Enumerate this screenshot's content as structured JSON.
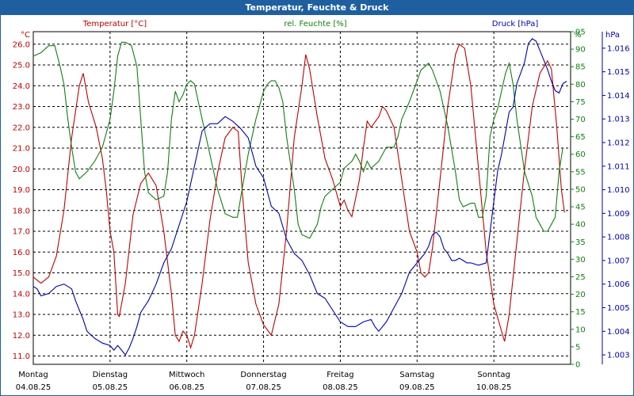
{
  "window": {
    "title": "Temperatur, Feuchte & Druck"
  },
  "colors": {
    "title_bar": "#1f5fa0",
    "temperature": "#c00000",
    "humidity": "#108010",
    "pressure": "#0000b0",
    "grid": "#000000"
  },
  "chart_data": {
    "type": "line",
    "axes": {
      "temperature": {
        "unit_label": "°C",
        "header": "Temperatur [°C]",
        "range": [
          10.6,
          26.6
        ],
        "ticks": [
          "26.0",
          "25.0",
          "24.0",
          "23.0",
          "22.0",
          "21.0",
          "20.0",
          "19.0",
          "18.0",
          "17.0",
          "16.0",
          "15.0",
          "14.0",
          "13.0",
          "12.0",
          "11.0"
        ]
      },
      "humidity": {
        "unit_label": "%",
        "header": "rel. Feuchte [%]",
        "range": [
          0,
          95
        ],
        "ticks": [
          "95",
          "90",
          "85",
          "80",
          "75",
          "70",
          "65",
          "60",
          "55",
          "50",
          "45",
          "40",
          "35",
          "30",
          "25",
          "20",
          "15",
          "10",
          "5",
          "0"
        ]
      },
      "pressure": {
        "unit_label": "hPa",
        "header": "Druck [hPa]",
        "range": [
          1002.6,
          1016.7
        ],
        "ticks": [
          "1.016",
          "1.015",
          "1.014",
          "1.013",
          "1.012",
          "1.011",
          "1.010",
          "1.009",
          "1.008",
          "1.007",
          "1.006",
          "1.005",
          "1.004",
          "1.003"
        ]
      }
    },
    "x_labels": [
      {
        "day": "Montag",
        "date": "04.08.25"
      },
      {
        "day": "Dienstag",
        "date": "05.08.25"
      },
      {
        "day": "Mittwoch",
        "date": "06.08.25"
      },
      {
        "day": "Donnerstag",
        "date": "07.08.25"
      },
      {
        "day": "Freitag",
        "date": "08.08.25"
      },
      {
        "day": "Samstag",
        "date": "09.08.25"
      },
      {
        "day": "Sonntag",
        "date": "10.08.25"
      }
    ],
    "x_range_days": [
      0,
      7
    ],
    "series": [
      {
        "axis": "temperature",
        "points": [
          [
            0,
            14.8
          ],
          [
            0.1,
            14.5
          ],
          [
            0.2,
            14.8
          ],
          [
            0.3,
            15.8
          ],
          [
            0.4,
            18.0
          ],
          [
            0.5,
            21.5
          ],
          [
            0.6,
            24.0
          ],
          [
            0.65,
            24.6
          ],
          [
            0.72,
            23.2
          ],
          [
            0.82,
            22.0
          ],
          [
            0.9,
            20.5
          ],
          [
            0.95,
            19.0
          ],
          [
            1.0,
            17.0
          ],
          [
            1.05,
            16.0
          ],
          [
            1.1,
            13.0
          ],
          [
            1.12,
            12.9
          ],
          [
            1.2,
            14.5
          ],
          [
            1.3,
            17.8
          ],
          [
            1.4,
            19.3
          ],
          [
            1.5,
            19.8
          ],
          [
            1.6,
            19.2
          ],
          [
            1.7,
            17.0
          ],
          [
            1.8,
            14.0
          ],
          [
            1.85,
            12.0
          ],
          [
            1.9,
            11.7
          ],
          [
            1.95,
            12.2
          ],
          [
            2.0,
            12.0
          ],
          [
            2.05,
            11.4
          ],
          [
            2.1,
            12.0
          ],
          [
            2.2,
            14.5
          ],
          [
            2.3,
            17.5
          ],
          [
            2.4,
            19.8
          ],
          [
            2.5,
            21.5
          ],
          [
            2.6,
            22.0
          ],
          [
            2.67,
            21.8
          ],
          [
            2.72,
            19.0
          ],
          [
            2.8,
            15.5
          ],
          [
            2.9,
            13.5
          ],
          [
            3.0,
            12.5
          ],
          [
            3.1,
            12.0
          ],
          [
            3.2,
            13.5
          ],
          [
            3.3,
            17.0
          ],
          [
            3.4,
            21.5
          ],
          [
            3.5,
            24.0
          ],
          [
            3.55,
            25.5
          ],
          [
            3.6,
            24.8
          ],
          [
            3.7,
            22.5
          ],
          [
            3.8,
            20.5
          ],
          [
            3.9,
            19.5
          ],
          [
            4.0,
            18.2
          ],
          [
            4.05,
            18.5
          ],
          [
            4.1,
            18.0
          ],
          [
            4.15,
            17.7
          ],
          [
            4.25,
            19.5
          ],
          [
            4.3,
            21.0
          ],
          [
            4.35,
            22.3
          ],
          [
            4.4,
            22.0
          ],
          [
            4.5,
            22.5
          ],
          [
            4.55,
            23.0
          ],
          [
            4.6,
            22.8
          ],
          [
            4.7,
            22.0
          ],
          [
            4.8,
            19.5
          ],
          [
            4.9,
            17.0
          ],
          [
            5.0,
            16.0
          ],
          [
            5.05,
            15.0
          ],
          [
            5.1,
            14.8
          ],
          [
            5.15,
            15.0
          ],
          [
            5.2,
            16.2
          ],
          [
            5.3,
            19.5
          ],
          [
            5.4,
            23.0
          ],
          [
            5.5,
            25.5
          ],
          [
            5.55,
            26.0
          ],
          [
            5.62,
            25.8
          ],
          [
            5.7,
            24.0
          ],
          [
            5.8,
            20.0
          ],
          [
            5.9,
            16.0
          ],
          [
            6.0,
            13.5
          ],
          [
            6.1,
            12.2
          ],
          [
            6.14,
            11.7
          ],
          [
            6.2,
            13.0
          ],
          [
            6.3,
            16.5
          ],
          [
            6.4,
            20.0
          ],
          [
            6.5,
            23.0
          ],
          [
            6.6,
            24.6
          ],
          [
            6.7,
            25.2
          ],
          [
            6.75,
            24.8
          ],
          [
            6.82,
            22.0
          ],
          [
            6.88,
            19.0
          ],
          [
            6.92,
            17.9
          ]
        ],
        "markers": false
      },
      {
        "axis": "humidity",
        "points": [
          [
            0,
            88
          ],
          [
            0.1,
            89
          ],
          [
            0.2,
            91
          ],
          [
            0.28,
            91
          ],
          [
            0.35,
            85
          ],
          [
            0.4,
            80
          ],
          [
            0.45,
            70
          ],
          [
            0.5,
            62
          ],
          [
            0.55,
            55
          ],
          [
            0.6,
            53
          ],
          [
            0.7,
            55
          ],
          [
            0.8,
            58
          ],
          [
            0.9,
            62
          ],
          [
            1.0,
            70
          ],
          [
            1.05,
            78
          ],
          [
            1.1,
            88
          ],
          [
            1.15,
            92
          ],
          [
            1.2,
            92
          ],
          [
            1.28,
            91
          ],
          [
            1.35,
            85
          ],
          [
            1.4,
            70
          ],
          [
            1.45,
            55
          ],
          [
            1.5,
            49
          ],
          [
            1.6,
            47
          ],
          [
            1.7,
            48
          ],
          [
            1.75,
            55
          ],
          [
            1.8,
            70
          ],
          [
            1.85,
            78
          ],
          [
            1.9,
            75
          ],
          [
            1.95,
            77
          ],
          [
            2.0,
            80
          ],
          [
            2.05,
            81
          ],
          [
            2.1,
            80
          ],
          [
            2.15,
            75
          ],
          [
            2.2,
            70
          ],
          [
            2.3,
            60
          ],
          [
            2.4,
            50
          ],
          [
            2.5,
            43
          ],
          [
            2.6,
            42
          ],
          [
            2.66,
            42
          ],
          [
            2.72,
            50
          ],
          [
            2.8,
            60
          ],
          [
            2.9,
            70
          ],
          [
            3.0,
            78
          ],
          [
            3.05,
            80
          ],
          [
            3.1,
            81
          ],
          [
            3.15,
            81
          ],
          [
            3.2,
            79
          ],
          [
            3.25,
            75
          ],
          [
            3.3,
            65
          ],
          [
            3.4,
            50
          ],
          [
            3.45,
            40
          ],
          [
            3.5,
            37
          ],
          [
            3.6,
            36
          ],
          [
            3.7,
            40
          ],
          [
            3.75,
            45
          ],
          [
            3.8,
            48
          ],
          [
            3.9,
            50
          ],
          [
            4.0,
            52
          ],
          [
            4.05,
            56
          ],
          [
            4.1,
            57
          ],
          [
            4.15,
            58
          ],
          [
            4.2,
            60
          ],
          [
            4.25,
            58
          ],
          [
            4.3,
            55
          ],
          [
            4.35,
            58
          ],
          [
            4.4,
            56
          ],
          [
            4.5,
            58
          ],
          [
            4.6,
            62
          ],
          [
            4.7,
            62
          ],
          [
            4.75,
            65
          ],
          [
            4.8,
            70
          ],
          [
            4.9,
            75
          ],
          [
            5.0,
            81
          ],
          [
            5.05,
            84
          ],
          [
            5.1,
            85
          ],
          [
            5.15,
            86
          ],
          [
            5.2,
            84
          ],
          [
            5.3,
            78
          ],
          [
            5.4,
            68
          ],
          [
            5.5,
            55
          ],
          [
            5.55,
            47
          ],
          [
            5.6,
            45
          ],
          [
            5.7,
            46
          ],
          [
            5.75,
            46
          ],
          [
            5.8,
            42
          ],
          [
            5.85,
            42
          ],
          [
            5.9,
            48
          ],
          [
            5.95,
            65
          ],
          [
            6.0,
            70
          ],
          [
            6.05,
            73
          ],
          [
            6.1,
            78
          ],
          [
            6.15,
            83
          ],
          [
            6.2,
            86
          ],
          [
            6.25,
            80
          ],
          [
            6.3,
            70
          ],
          [
            6.4,
            55
          ],
          [
            6.5,
            48
          ],
          [
            6.55,
            42
          ],
          [
            6.6,
            40
          ],
          [
            6.65,
            38
          ],
          [
            6.7,
            38
          ],
          [
            6.75,
            40
          ],
          [
            6.8,
            42
          ],
          [
            6.85,
            55
          ],
          [
            6.9,
            62
          ]
        ],
        "markers": false
      },
      {
        "axis": "pressure",
        "points": [
          [
            0,
            1005.9
          ],
          [
            0.05,
            1005.8
          ],
          [
            0.1,
            1005.5
          ],
          [
            0.2,
            1005.6
          ],
          [
            0.3,
            1005.9
          ],
          [
            0.4,
            1006.0
          ],
          [
            0.45,
            1005.9
          ],
          [
            0.5,
            1005.8
          ],
          [
            0.55,
            1005.3
          ],
          [
            0.6,
            1004.9
          ],
          [
            0.65,
            1004.5
          ],
          [
            0.7,
            1004.0
          ],
          [
            0.8,
            1003.7
          ],
          [
            0.9,
            1003.5
          ],
          [
            1.0,
            1003.4
          ],
          [
            1.05,
            1003.2
          ],
          [
            1.1,
            1003.4
          ],
          [
            1.15,
            1003.2
          ],
          [
            1.2,
            1003.0
          ],
          [
            1.25,
            1003.3
          ],
          [
            1.3,
            1003.7
          ],
          [
            1.35,
            1004.2
          ],
          [
            1.4,
            1004.8
          ],
          [
            1.5,
            1005.3
          ],
          [
            1.6,
            1006.0
          ],
          [
            1.7,
            1006.9
          ],
          [
            1.8,
            1007.5
          ],
          [
            1.9,
            1008.5
          ],
          [
            2.0,
            1009.5
          ],
          [
            2.1,
            1011.0
          ],
          [
            2.2,
            1012.5
          ],
          [
            2.3,
            1012.8
          ],
          [
            2.4,
            1012.8
          ],
          [
            2.5,
            1013.1
          ],
          [
            2.6,
            1012.9
          ],
          [
            2.7,
            1012.6
          ],
          [
            2.8,
            1012.2
          ],
          [
            2.9,
            1011.0
          ],
          [
            3.0,
            1010.5
          ],
          [
            3.1,
            1009.3
          ],
          [
            3.2,
            1009.0
          ],
          [
            3.3,
            1007.9
          ],
          [
            3.4,
            1007.3
          ],
          [
            3.5,
            1007.0
          ],
          [
            3.6,
            1006.4
          ],
          [
            3.7,
            1005.6
          ],
          [
            3.8,
            1005.4
          ],
          [
            3.9,
            1004.9
          ],
          [
            4.0,
            1004.4
          ],
          [
            4.1,
            1004.2
          ],
          [
            4.2,
            1004.2
          ],
          [
            4.3,
            1004.4
          ],
          [
            4.4,
            1004.5
          ],
          [
            4.45,
            1004.2
          ],
          [
            4.5,
            1004.0
          ],
          [
            4.6,
            1004.4
          ],
          [
            4.7,
            1005.0
          ],
          [
            4.8,
            1005.6
          ],
          [
            4.9,
            1006.5
          ],
          [
            5.0,
            1006.9
          ],
          [
            5.05,
            1007.1
          ],
          [
            5.1,
            1007.3
          ],
          [
            5.15,
            1007.6
          ],
          [
            5.2,
            1008.1
          ],
          [
            5.25,
            1008.2
          ],
          [
            5.3,
            1008.0
          ],
          [
            5.35,
            1007.5
          ],
          [
            5.4,
            1007.3
          ],
          [
            5.45,
            1007.0
          ],
          [
            5.5,
            1007.0
          ],
          [
            5.55,
            1007.1
          ],
          [
            5.6,
            1007.0
          ],
          [
            5.65,
            1006.9
          ],
          [
            5.7,
            1006.9
          ],
          [
            5.8,
            1006.8
          ],
          [
            5.9,
            1006.9
          ],
          [
            6.0,
            1009.5
          ],
          [
            6.05,
            1010.8
          ],
          [
            6.1,
            1011.5
          ],
          [
            6.15,
            1012.4
          ],
          [
            6.2,
            1013.3
          ],
          [
            6.25,
            1013.5
          ],
          [
            6.3,
            1014.5
          ],
          [
            6.4,
            1015.4
          ],
          [
            6.45,
            1016.2
          ],
          [
            6.5,
            1016.4
          ],
          [
            6.55,
            1016.3
          ],
          [
            6.6,
            1015.9
          ],
          [
            6.65,
            1015.5
          ],
          [
            6.7,
            1015.1
          ],
          [
            6.75,
            1014.6
          ],
          [
            6.8,
            1014.2
          ],
          [
            6.85,
            1014.1
          ],
          [
            6.9,
            1014.5
          ],
          [
            6.95,
            1014.6
          ]
        ],
        "markers": false
      }
    ],
    "grid": true
  }
}
